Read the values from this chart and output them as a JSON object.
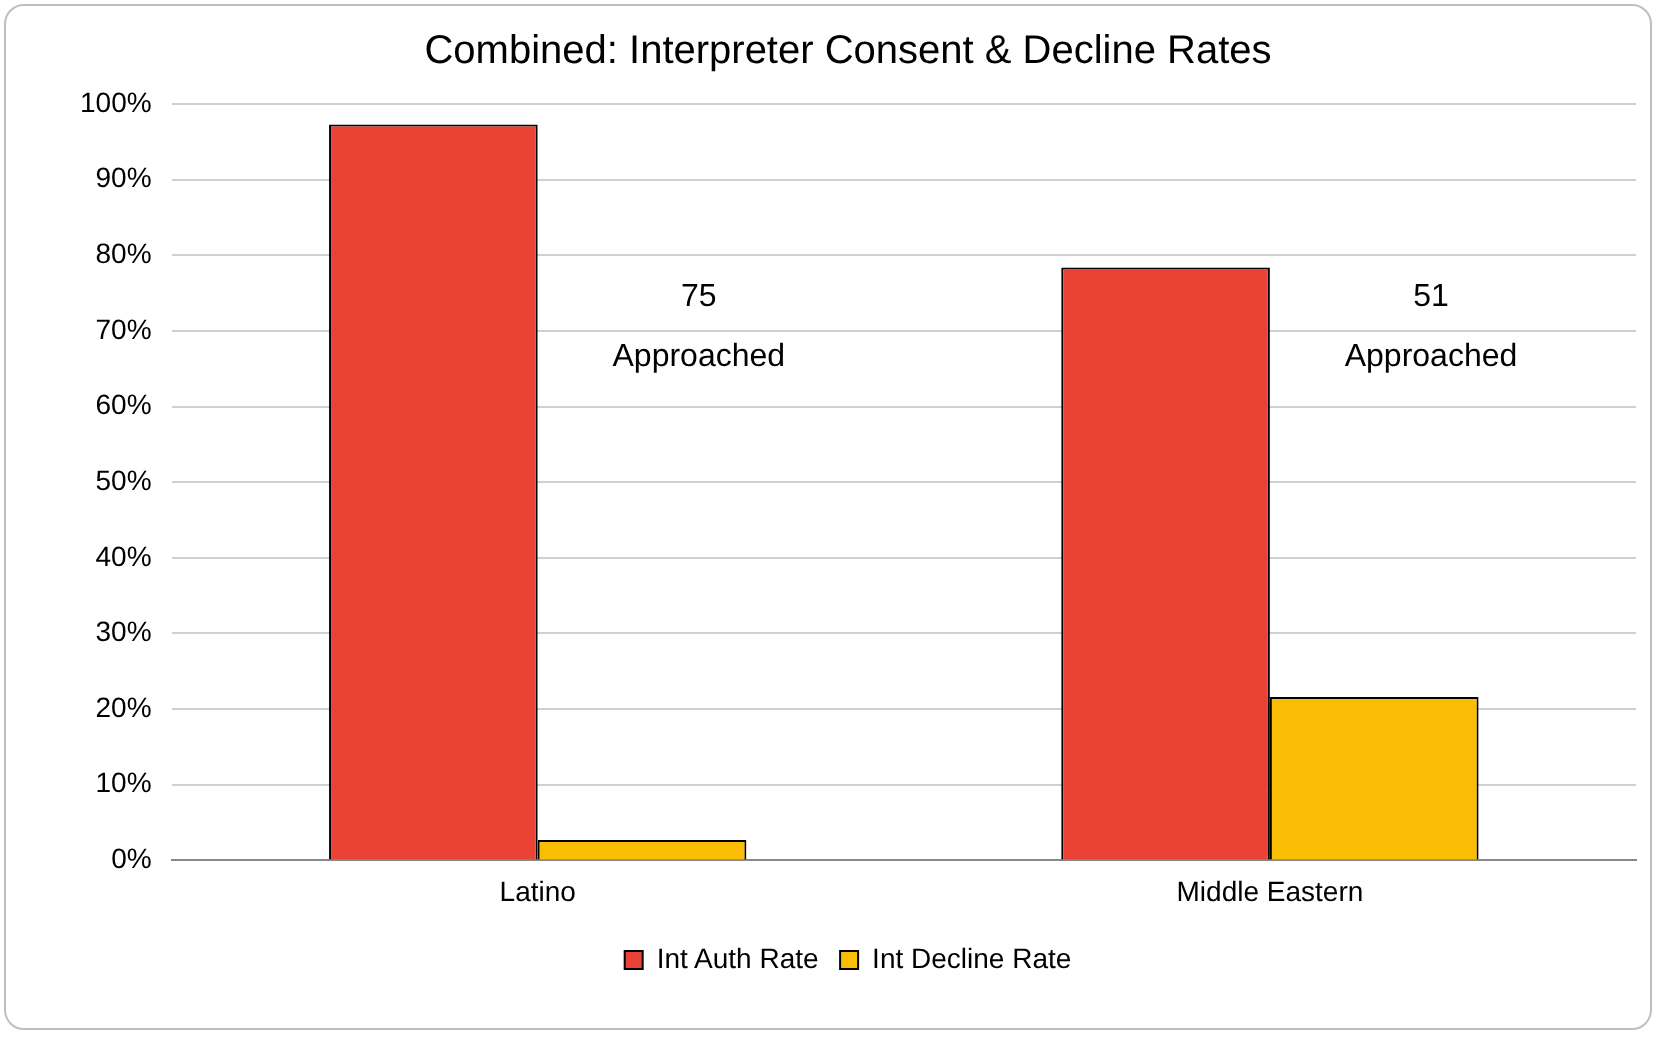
{
  "chart_data": {
    "type": "bar",
    "title": "Combined: Interpreter Consent & Decline Rates",
    "categories": [
      "Latino",
      "Middle Eastern"
    ],
    "series": [
      {
        "name": "Int Auth Rate",
        "color": "#ea4335",
        "values": [
          97.3,
          78.4
        ]
      },
      {
        "name": "Int Decline Rate",
        "color": "#fbbc04",
        "values": [
          2.7,
          21.6
        ]
      }
    ],
    "ylim": [
      0,
      100
    ],
    "yticks": [
      {
        "value": 0,
        "label": "0%"
      },
      {
        "value": 10,
        "label": "10%"
      },
      {
        "value": 20,
        "label": "20%"
      },
      {
        "value": 30,
        "label": "30%"
      },
      {
        "value": 40,
        "label": "40%"
      },
      {
        "value": 50,
        "label": "50%"
      },
      {
        "value": 60,
        "label": "60%"
      },
      {
        "value": 70,
        "label": "70%"
      },
      {
        "value": 80,
        "label": "80%"
      },
      {
        "value": 90,
        "label": "90%"
      },
      {
        "value": 100,
        "label": "100%"
      }
    ],
    "grid": "y",
    "legend": "bottom",
    "annotations": [
      "75 Approached",
      "51 Approached"
    ]
  }
}
